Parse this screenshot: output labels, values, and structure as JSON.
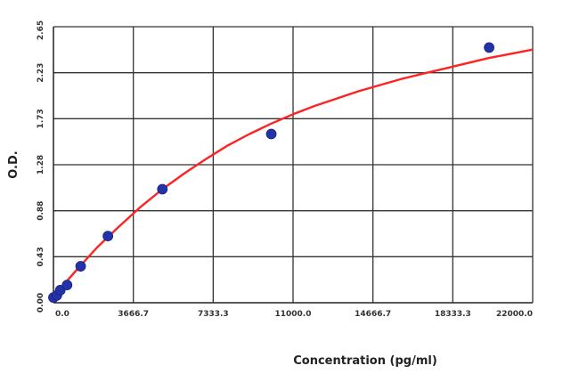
{
  "chart_data": {
    "type": "scatter",
    "title": "",
    "xlabel": "Concentration (pg/ml)",
    "ylabel": "O.D.",
    "xlim": [
      0,
      22000
    ],
    "ylim": [
      0,
      2.65
    ],
    "x_ticks": [
      "0.0",
      "3666.7",
      "7333.3",
      "11000.0",
      "14666.7",
      "18333.3",
      "22000.0"
    ],
    "y_ticks": [
      "0.00",
      "0.43",
      "0.88",
      "1.28",
      "1.73",
      "2.23",
      "2.65"
    ],
    "grid": true,
    "legend": "none",
    "series": [
      {
        "kind": "points",
        "color": "#2233aa",
        "x": [
          0,
          156,
          312,
          625,
          1250,
          2500,
          5000,
          10000,
          20000
        ],
        "y": [
          0.05,
          0.07,
          0.12,
          0.17,
          0.35,
          0.64,
          1.09,
          1.62,
          2.45
        ]
      },
      {
        "kind": "fit-curve",
        "color": "#ff2222",
        "x": [
          0,
          500,
          1000,
          2000,
          3000,
          4000,
          5000,
          6000,
          7000,
          8000,
          9000,
          10000,
          11000,
          12000,
          13000,
          14000,
          15000,
          16000,
          17000,
          18000,
          19000,
          20000,
          21000,
          22000
        ],
        "y": [
          0.05,
          0.18,
          0.3,
          0.53,
          0.73,
          0.92,
          1.09,
          1.24,
          1.38,
          1.51,
          1.62,
          1.72,
          1.81,
          1.89,
          1.96,
          2.03,
          2.09,
          2.15,
          2.2,
          2.25,
          2.3,
          2.35,
          2.39,
          2.43
        ]
      }
    ]
  }
}
